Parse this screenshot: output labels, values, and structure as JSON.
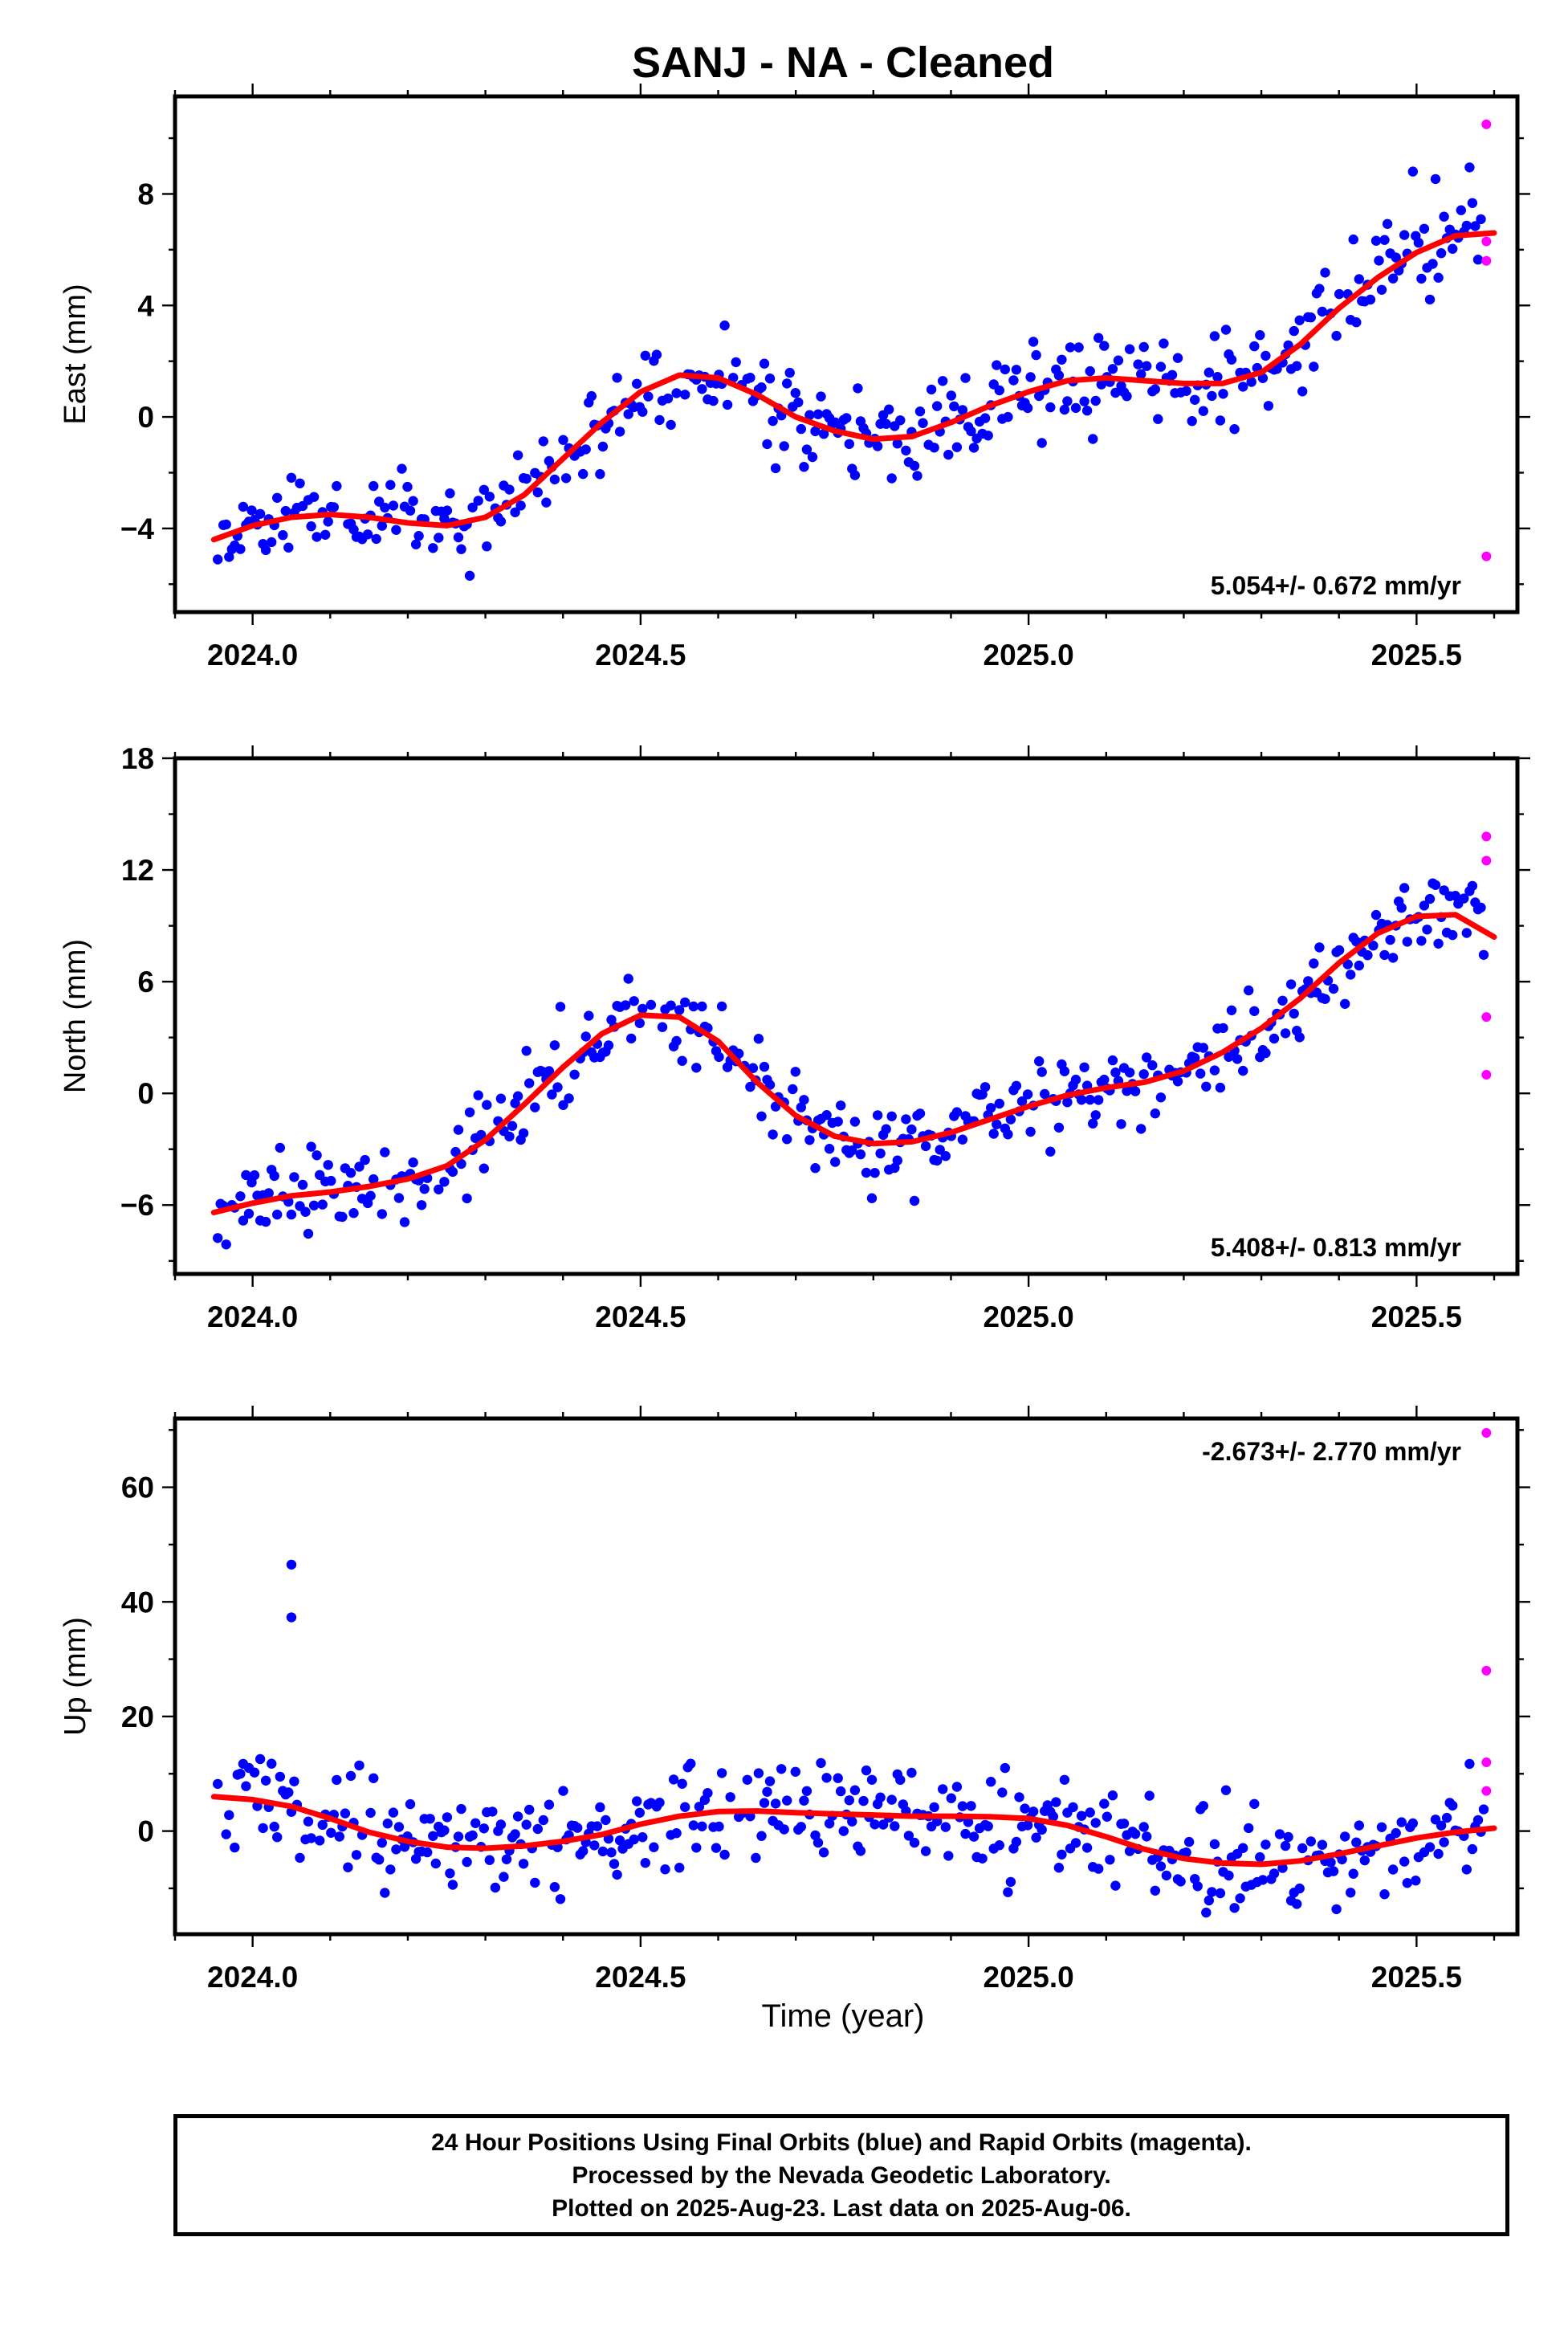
{
  "title": "SANJ  - NA - Cleaned",
  "xlabel": "Time (year)",
  "colors": {
    "final": "#0000ff",
    "rapid": "#ff00ff",
    "fit": "#ff0000",
    "frame": "#000000"
  },
  "x_ticks": [
    "2024.0",
    "2024.5",
    "2025.0",
    "2025.5"
  ],
  "caption": [
    "24 Hour Positions Using Final Orbits (blue) and Rapid Orbits (magenta).",
    "Processed by the Nevada Geodetic Laboratory.",
    "Plotted on 2025-Aug-23. Last data on 2025-Aug-06."
  ],
  "chart_data": [
    {
      "type": "scatter",
      "ylabel": "East (mm)",
      "rate_label": "5.054+/- 0.672 mm/yr",
      "xlim": [
        2023.9,
        2025.63
      ],
      "ylim": [
        -7,
        11.5
      ],
      "y_ticks": [
        -4,
        0,
        4,
        8
      ],
      "trend": [
        [
          2023.95,
          -4.4
        ],
        [
          2024.0,
          -3.9
        ],
        [
          2024.05,
          -3.6
        ],
        [
          2024.1,
          -3.5
        ],
        [
          2024.15,
          -3.6
        ],
        [
          2024.2,
          -3.8
        ],
        [
          2024.25,
          -3.9
        ],
        [
          2024.3,
          -3.6
        ],
        [
          2024.35,
          -2.8
        ],
        [
          2024.4,
          -1.5
        ],
        [
          2024.45,
          -0.2
        ],
        [
          2024.5,
          0.9
        ],
        [
          2024.55,
          1.5
        ],
        [
          2024.6,
          1.4
        ],
        [
          2024.65,
          0.8
        ],
        [
          2024.7,
          0.0
        ],
        [
          2024.75,
          -0.5
        ],
        [
          2024.8,
          -0.8
        ],
        [
          2024.85,
          -0.7
        ],
        [
          2024.9,
          -0.2
        ],
        [
          2024.95,
          0.4
        ],
        [
          2025.0,
          0.9
        ],
        [
          2025.05,
          1.3
        ],
        [
          2025.1,
          1.4
        ],
        [
          2025.15,
          1.3
        ],
        [
          2025.2,
          1.2
        ],
        [
          2025.25,
          1.2
        ],
        [
          2025.3,
          1.6
        ],
        [
          2025.35,
          2.6
        ],
        [
          2025.4,
          3.9
        ],
        [
          2025.45,
          5.0
        ],
        [
          2025.5,
          5.9
        ],
        [
          2025.55,
          6.5
        ],
        [
          2025.6,
          6.6
        ]
      ],
      "rapid": [
        [
          2025.59,
          10.5
        ],
        [
          2025.59,
          6.3
        ],
        [
          2025.59,
          5.6
        ],
        [
          2025.59,
          -5.0
        ]
      ],
      "noise_seed": 11,
      "noise_sd": 0.8
    },
    {
      "type": "scatter",
      "ylabel": "North (mm)",
      "rate_label": "5.408+/- 0.813 mm/yr",
      "xlim": [
        2023.9,
        2025.63
      ],
      "ylim": [
        -9.7,
        18
      ],
      "y_ticks": [
        -6,
        0,
        6,
        12,
        18
      ],
      "trend": [
        [
          2023.95,
          -6.4
        ],
        [
          2024.0,
          -5.9
        ],
        [
          2024.05,
          -5.5
        ],
        [
          2024.1,
          -5.3
        ],
        [
          2024.15,
          -5.0
        ],
        [
          2024.2,
          -4.6
        ],
        [
          2024.25,
          -3.9
        ],
        [
          2024.3,
          -2.5
        ],
        [
          2024.35,
          -0.6
        ],
        [
          2024.4,
          1.4
        ],
        [
          2024.45,
          3.2
        ],
        [
          2024.5,
          4.2
        ],
        [
          2024.55,
          4.1
        ],
        [
          2024.6,
          2.8
        ],
        [
          2024.65,
          0.6
        ],
        [
          2024.7,
          -1.2
        ],
        [
          2024.75,
          -2.3
        ],
        [
          2024.8,
          -2.7
        ],
        [
          2024.85,
          -2.6
        ],
        [
          2024.9,
          -2.1
        ],
        [
          2024.95,
          -1.4
        ],
        [
          2025.0,
          -0.7
        ],
        [
          2025.05,
          -0.1
        ],
        [
          2025.1,
          0.3
        ],
        [
          2025.15,
          0.6
        ],
        [
          2025.2,
          1.2
        ],
        [
          2025.25,
          2.2
        ],
        [
          2025.3,
          3.5
        ],
        [
          2025.35,
          5.1
        ],
        [
          2025.4,
          7.0
        ],
        [
          2025.45,
          8.6
        ],
        [
          2025.5,
          9.5
        ],
        [
          2025.55,
          9.6
        ],
        [
          2025.6,
          8.4
        ]
      ],
      "rapid": [
        [
          2025.59,
          13.8
        ],
        [
          2025.59,
          12.5
        ],
        [
          2025.59,
          4.1
        ],
        [
          2025.59,
          1.0
        ]
      ],
      "noise_seed": 23,
      "noise_sd": 1.1
    },
    {
      "type": "scatter",
      "ylabel": "Up (mm)",
      "rate_label": "-2.673+/- 2.770 mm/yr",
      "xlim": [
        2023.9,
        2025.63
      ],
      "ylim": [
        -18,
        72
      ],
      "y_ticks": [
        0,
        20,
        40,
        60
      ],
      "trend": [
        [
          2023.95,
          6.0
        ],
        [
          2024.0,
          5.5
        ],
        [
          2024.05,
          4.3
        ],
        [
          2024.1,
          2.2
        ],
        [
          2024.15,
          -0.2
        ],
        [
          2024.2,
          -1.8
        ],
        [
          2024.25,
          -2.8
        ],
        [
          2024.3,
          -3.0
        ],
        [
          2024.35,
          -2.6
        ],
        [
          2024.4,
          -1.8
        ],
        [
          2024.45,
          -0.6
        ],
        [
          2024.5,
          1.2
        ],
        [
          2024.55,
          2.6
        ],
        [
          2024.6,
          3.4
        ],
        [
          2024.65,
          3.5
        ],
        [
          2024.7,
          3.2
        ],
        [
          2024.75,
          3.0
        ],
        [
          2024.8,
          2.8
        ],
        [
          2024.85,
          2.6
        ],
        [
          2024.9,
          2.6
        ],
        [
          2024.95,
          2.5
        ],
        [
          2025.0,
          2.2
        ],
        [
          2025.05,
          1.0
        ],
        [
          2025.1,
          -1.0
        ],
        [
          2025.15,
          -3.2
        ],
        [
          2025.2,
          -4.8
        ],
        [
          2025.25,
          -5.6
        ],
        [
          2025.3,
          -5.8
        ],
        [
          2025.35,
          -5.2
        ],
        [
          2025.4,
          -4.0
        ],
        [
          2025.45,
          -2.6
        ],
        [
          2025.5,
          -1.2
        ],
        [
          2025.55,
          -0.2
        ],
        [
          2025.6,
          0.5
        ]
      ],
      "outliers": [
        [
          2024.05,
          46.5
        ],
        [
          2024.05,
          37.3
        ]
      ],
      "rapid": [
        [
          2025.59,
          69.5
        ],
        [
          2025.59,
          28.0
        ],
        [
          2025.59,
          12.0
        ],
        [
          2025.59,
          7.0
        ]
      ],
      "noise_seed": 37,
      "noise_sd": 4.2
    }
  ]
}
